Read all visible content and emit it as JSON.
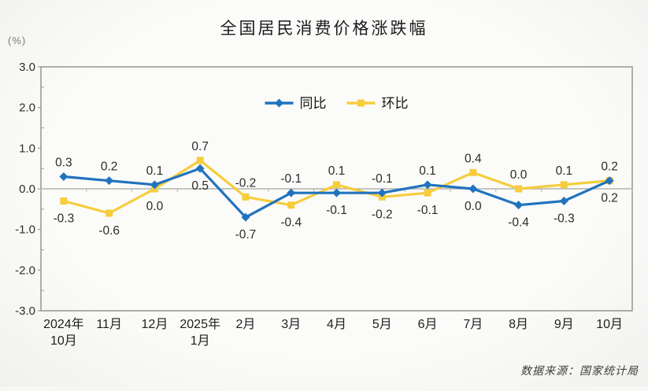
{
  "title": "全国居民消费价格涨跌幅",
  "source_note": "数据来源：国家统计局",
  "chart_data": {
    "type": "line",
    "title": "全国居民消费价格涨跌幅",
    "unit_label": "(%)",
    "xlabel": "",
    "ylabel": "(%)",
    "ylim": [
      -3.0,
      3.0
    ],
    "ytick_interval": 1.0,
    "ytick_labels": [
      "3.0",
      "2.0",
      "1.0",
      "0.0",
      "-1.0",
      "-2.0",
      "-3.0"
    ],
    "grid": false,
    "legend_position": "top-center-inside",
    "categories": [
      "2024年\n10月",
      "11月",
      "12月",
      "2025年\n1月",
      "2月",
      "3月",
      "4月",
      "5月",
      "6月",
      "7月",
      "8月",
      "9月",
      "10月"
    ],
    "series": [
      {
        "name": "同比",
        "color": "#2173be",
        "marker": "diamond",
        "values": [
          0.3,
          0.2,
          0.1,
          0.5,
          -0.7,
          -0.1,
          -0.1,
          -0.1,
          0.1,
          0.0,
          -0.4,
          -0.3,
          0.2
        ]
      },
      {
        "name": "环比",
        "color": "#f6cd3c",
        "marker": "square",
        "values": [
          -0.3,
          -0.6,
          0.0,
          0.7,
          -0.2,
          -0.4,
          0.1,
          -0.2,
          -0.1,
          0.4,
          0.0,
          0.1,
          0.2
        ]
      }
    ],
    "axis_color": "#9b9b99",
    "zero_line_color": "#b3b3b0",
    "label_color": "#2b2b29"
  }
}
